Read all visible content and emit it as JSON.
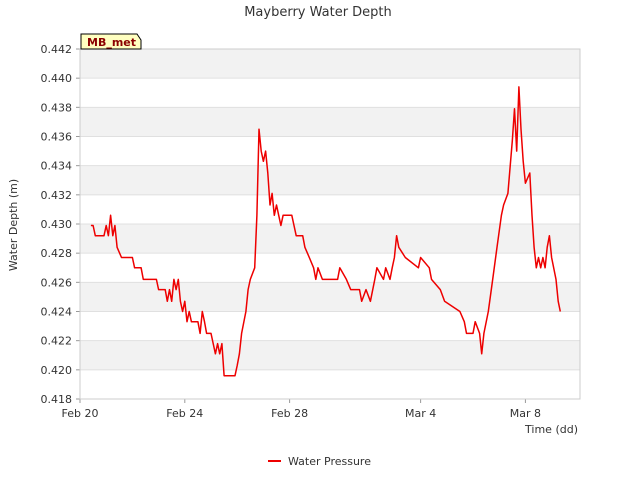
{
  "chart_data": {
    "type": "line",
    "title": "Mayberry Water Depth",
    "site_label": "MB_met",
    "xlabel": "Time (dd)",
    "ylabel": "Water Depth (m)",
    "ylim": [
      0.418,
      0.442
    ],
    "xlim": [
      "2024-02-20",
      "2024-03-10T02:00"
    ],
    "y_ticks": [
      "0.418",
      "0.420",
      "0.422",
      "0.424",
      "0.426",
      "0.428",
      "0.430",
      "0.432",
      "0.434",
      "0.436",
      "0.438",
      "0.440",
      "0.442"
    ],
    "x_ticks": [
      {
        "date": "2024-02-20",
        "label": "Feb 20"
      },
      {
        "date": "2024-02-24",
        "label": "Feb 24"
      },
      {
        "date": "2024-02-28",
        "label": "Feb 28"
      },
      {
        "date": "2024-03-04",
        "label": "Mar 4"
      },
      {
        "date": "2024-03-08",
        "label": "Mar 8"
      }
    ],
    "grid": "horizontal alternating bands",
    "legend_position": "bottom-center",
    "series": [
      {
        "name": "Water Pressure",
        "color": "#ee0000",
        "points": [
          [
            "2024-02-20T10:00",
            0.4299
          ],
          [
            "2024-02-20T12:00",
            0.4299
          ],
          [
            "2024-02-20T14:00",
            0.4292
          ],
          [
            "2024-02-20T22:00",
            0.4292
          ],
          [
            "2024-02-21T00:00",
            0.4299
          ],
          [
            "2024-02-21T02:00",
            0.4292
          ],
          [
            "2024-02-21T04:00",
            0.4306
          ],
          [
            "2024-02-21T06:00",
            0.4292
          ],
          [
            "2024-02-21T08:00",
            0.4299
          ],
          [
            "2024-02-21T10:00",
            0.4284
          ],
          [
            "2024-02-21T14:00",
            0.4277
          ],
          [
            "2024-02-22T00:00",
            0.4277
          ],
          [
            "2024-02-22T02:00",
            0.427
          ],
          [
            "2024-02-22T08:00",
            0.427
          ],
          [
            "2024-02-22T10:00",
            0.4262
          ],
          [
            "2024-02-22T22:00",
            0.4262
          ],
          [
            "2024-02-23T00:00",
            0.4255
          ],
          [
            "2024-02-23T06:00",
            0.4255
          ],
          [
            "2024-02-23T08:00",
            0.4247
          ],
          [
            "2024-02-23T10:00",
            0.4255
          ],
          [
            "2024-02-23T12:00",
            0.4247
          ],
          [
            "2024-02-23T14:00",
            0.4262
          ],
          [
            "2024-02-23T16:00",
            0.4255
          ],
          [
            "2024-02-23T18:00",
            0.4262
          ],
          [
            "2024-02-23T20:00",
            0.4247
          ],
          [
            "2024-02-23T22:00",
            0.424
          ],
          [
            "2024-02-24T00:00",
            0.4247
          ],
          [
            "2024-02-24T02:00",
            0.4233
          ],
          [
            "2024-02-24T04:00",
            0.424
          ],
          [
            "2024-02-24T06:00",
            0.4233
          ],
          [
            "2024-02-24T12:00",
            0.4233
          ],
          [
            "2024-02-24T14:00",
            0.4225
          ],
          [
            "2024-02-24T16:00",
            0.424
          ],
          [
            "2024-02-24T18:00",
            0.4233
          ],
          [
            "2024-02-24T20:00",
            0.4225
          ],
          [
            "2024-02-25T00:00",
            0.4225
          ],
          [
            "2024-02-25T02:00",
            0.4218
          ],
          [
            "2024-02-25T04:00",
            0.4211
          ],
          [
            "2024-02-25T06:00",
            0.4218
          ],
          [
            "2024-02-25T08:00",
            0.4211
          ],
          [
            "2024-02-25T10:00",
            0.4218
          ],
          [
            "2024-02-25T12:00",
            0.4196
          ],
          [
            "2024-02-25T22:00",
            0.4196
          ],
          [
            "2024-02-26T00:00",
            0.4203
          ],
          [
            "2024-02-26T02:00",
            0.4211
          ],
          [
            "2024-02-26T04:00",
            0.4225
          ],
          [
            "2024-02-26T08:00",
            0.424
          ],
          [
            "2024-02-26T10:00",
            0.4255
          ],
          [
            "2024-02-26T12:00",
            0.4262
          ],
          [
            "2024-02-26T16:00",
            0.427
          ],
          [
            "2024-02-26T18:00",
            0.4306
          ],
          [
            "2024-02-26T20:00",
            0.4365
          ],
          [
            "2024-02-26T22:00",
            0.435
          ],
          [
            "2024-02-27T00:00",
            0.4343
          ],
          [
            "2024-02-27T02:00",
            0.435
          ],
          [
            "2024-02-27T04:00",
            0.4335
          ],
          [
            "2024-02-27T06:00",
            0.4313
          ],
          [
            "2024-02-27T08:00",
            0.4321
          ],
          [
            "2024-02-27T10:00",
            0.4306
          ],
          [
            "2024-02-27T12:00",
            0.4313
          ],
          [
            "2024-02-27T14:00",
            0.4306
          ],
          [
            "2024-02-27T16:00",
            0.4299
          ],
          [
            "2024-02-27T18:00",
            0.4306
          ],
          [
            "2024-02-28T02:00",
            0.4306
          ],
          [
            "2024-02-28T04:00",
            0.4299
          ],
          [
            "2024-02-28T06:00",
            0.4292
          ],
          [
            "2024-02-28T12:00",
            0.4292
          ],
          [
            "2024-02-28T14:00",
            0.4284
          ],
          [
            "2024-02-28T18:00",
            0.4277
          ],
          [
            "2024-02-28T22:00",
            0.427
          ],
          [
            "2024-02-29T00:00",
            0.4262
          ],
          [
            "2024-02-29T02:00",
            0.427
          ],
          [
            "2024-02-29T06:00",
            0.4262
          ],
          [
            "2024-02-29T20:00",
            0.4262
          ],
          [
            "2024-02-29T22:00",
            0.427
          ],
          [
            "2024-03-01T04:00",
            0.4262
          ],
          [
            "2024-03-01T08:00",
            0.4255
          ],
          [
            "2024-03-01T16:00",
            0.4255
          ],
          [
            "2024-03-01T18:00",
            0.4247
          ],
          [
            "2024-03-01T22:00",
            0.4255
          ],
          [
            "2024-03-02T02:00",
            0.4247
          ],
          [
            "2024-03-02T06:00",
            0.4262
          ],
          [
            "2024-03-02T08:00",
            0.427
          ],
          [
            "2024-03-02T14:00",
            0.4262
          ],
          [
            "2024-03-02T16:00",
            0.427
          ],
          [
            "2024-03-02T20:00",
            0.4262
          ],
          [
            "2024-03-02T22:00",
            0.427
          ],
          [
            "2024-03-03T00:00",
            0.4277
          ],
          [
            "2024-03-03T02:00",
            0.4292
          ],
          [
            "2024-03-03T04:00",
            0.4284
          ],
          [
            "2024-03-03T10:00",
            0.4277
          ],
          [
            "2024-03-03T22:00",
            0.427
          ],
          [
            "2024-03-04T00:00",
            0.4277
          ],
          [
            "2024-03-04T08:00",
            0.427
          ],
          [
            "2024-03-04T10:00",
            0.4262
          ],
          [
            "2024-03-04T18:00",
            0.4255
          ],
          [
            "2024-03-04T22:00",
            0.4247
          ],
          [
            "2024-03-05T12:00",
            0.424
          ],
          [
            "2024-03-05T16:00",
            0.4233
          ],
          [
            "2024-03-05T18:00",
            0.4225
          ],
          [
            "2024-03-06T00:00",
            0.4225
          ],
          [
            "2024-03-06T02:00",
            0.4233
          ],
          [
            "2024-03-06T06:00",
            0.4225
          ],
          [
            "2024-03-06T08:00",
            0.4211
          ],
          [
            "2024-03-06T10:00",
            0.4225
          ],
          [
            "2024-03-06T14:00",
            0.424
          ],
          [
            "2024-03-06T18:00",
            0.4262
          ],
          [
            "2024-03-06T22:00",
            0.4284
          ],
          [
            "2024-03-07T02:00",
            0.4306
          ],
          [
            "2024-03-07T04:00",
            0.4313
          ],
          [
            "2024-03-07T08:00",
            0.4321
          ],
          [
            "2024-03-07T12:00",
            0.4357
          ],
          [
            "2024-03-07T14:00",
            0.4379
          ],
          [
            "2024-03-07T16:00",
            0.435
          ],
          [
            "2024-03-07T18:00",
            0.4394
          ],
          [
            "2024-03-07T20:00",
            0.4365
          ],
          [
            "2024-03-07T22:00",
            0.4343
          ],
          [
            "2024-03-08T00:00",
            0.4328
          ],
          [
            "2024-03-08T04:00",
            0.4335
          ],
          [
            "2024-03-08T06:00",
            0.4306
          ],
          [
            "2024-03-08T08:00",
            0.4284
          ],
          [
            "2024-03-08T10:00",
            0.427
          ],
          [
            "2024-03-08T12:00",
            0.4277
          ],
          [
            "2024-03-08T14:00",
            0.427
          ],
          [
            "2024-03-08T16:00",
            0.4277
          ],
          [
            "2024-03-08T18:00",
            0.427
          ],
          [
            "2024-03-08T20:00",
            0.4284
          ],
          [
            "2024-03-08T22:00",
            0.4292
          ],
          [
            "2024-03-09T00:00",
            0.4277
          ],
          [
            "2024-03-09T04:00",
            0.4262
          ],
          [
            "2024-03-09T06:00",
            0.4247
          ],
          [
            "2024-03-09T08:00",
            0.424
          ]
        ]
      }
    ]
  }
}
